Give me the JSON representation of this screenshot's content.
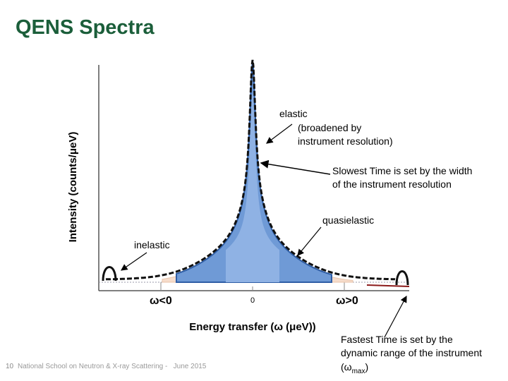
{
  "header": {
    "title": "QENS Spectra"
  },
  "figure": {
    "y_axis_label": "Intensity (counts/μeV)",
    "x_axis_label": "Energy transfer (ω (μeV))",
    "x_marks": [
      "ω<0",
      "0",
      "ω>0"
    ],
    "annotations": {
      "elastic": "elastic",
      "elastic_note": [
        "(broadened by",
        "instrument resolution)"
      ],
      "slowest": [
        "Slowest Time is set by the width",
        "of the instrument resolution"
      ],
      "quasielastic": "quasielastic",
      "inelastic": "inelastic",
      "fastest": [
        "Fastest Time is set by the",
        "dynamic range of the instrument"
      ],
      "fastest_open": "(ω",
      "fastest_sub": "max",
      "fastest_close": ")"
    }
  },
  "footer": {
    "page": "10",
    "text": "National School on Neutron & X-ray Scattering -   June 2015"
  }
}
